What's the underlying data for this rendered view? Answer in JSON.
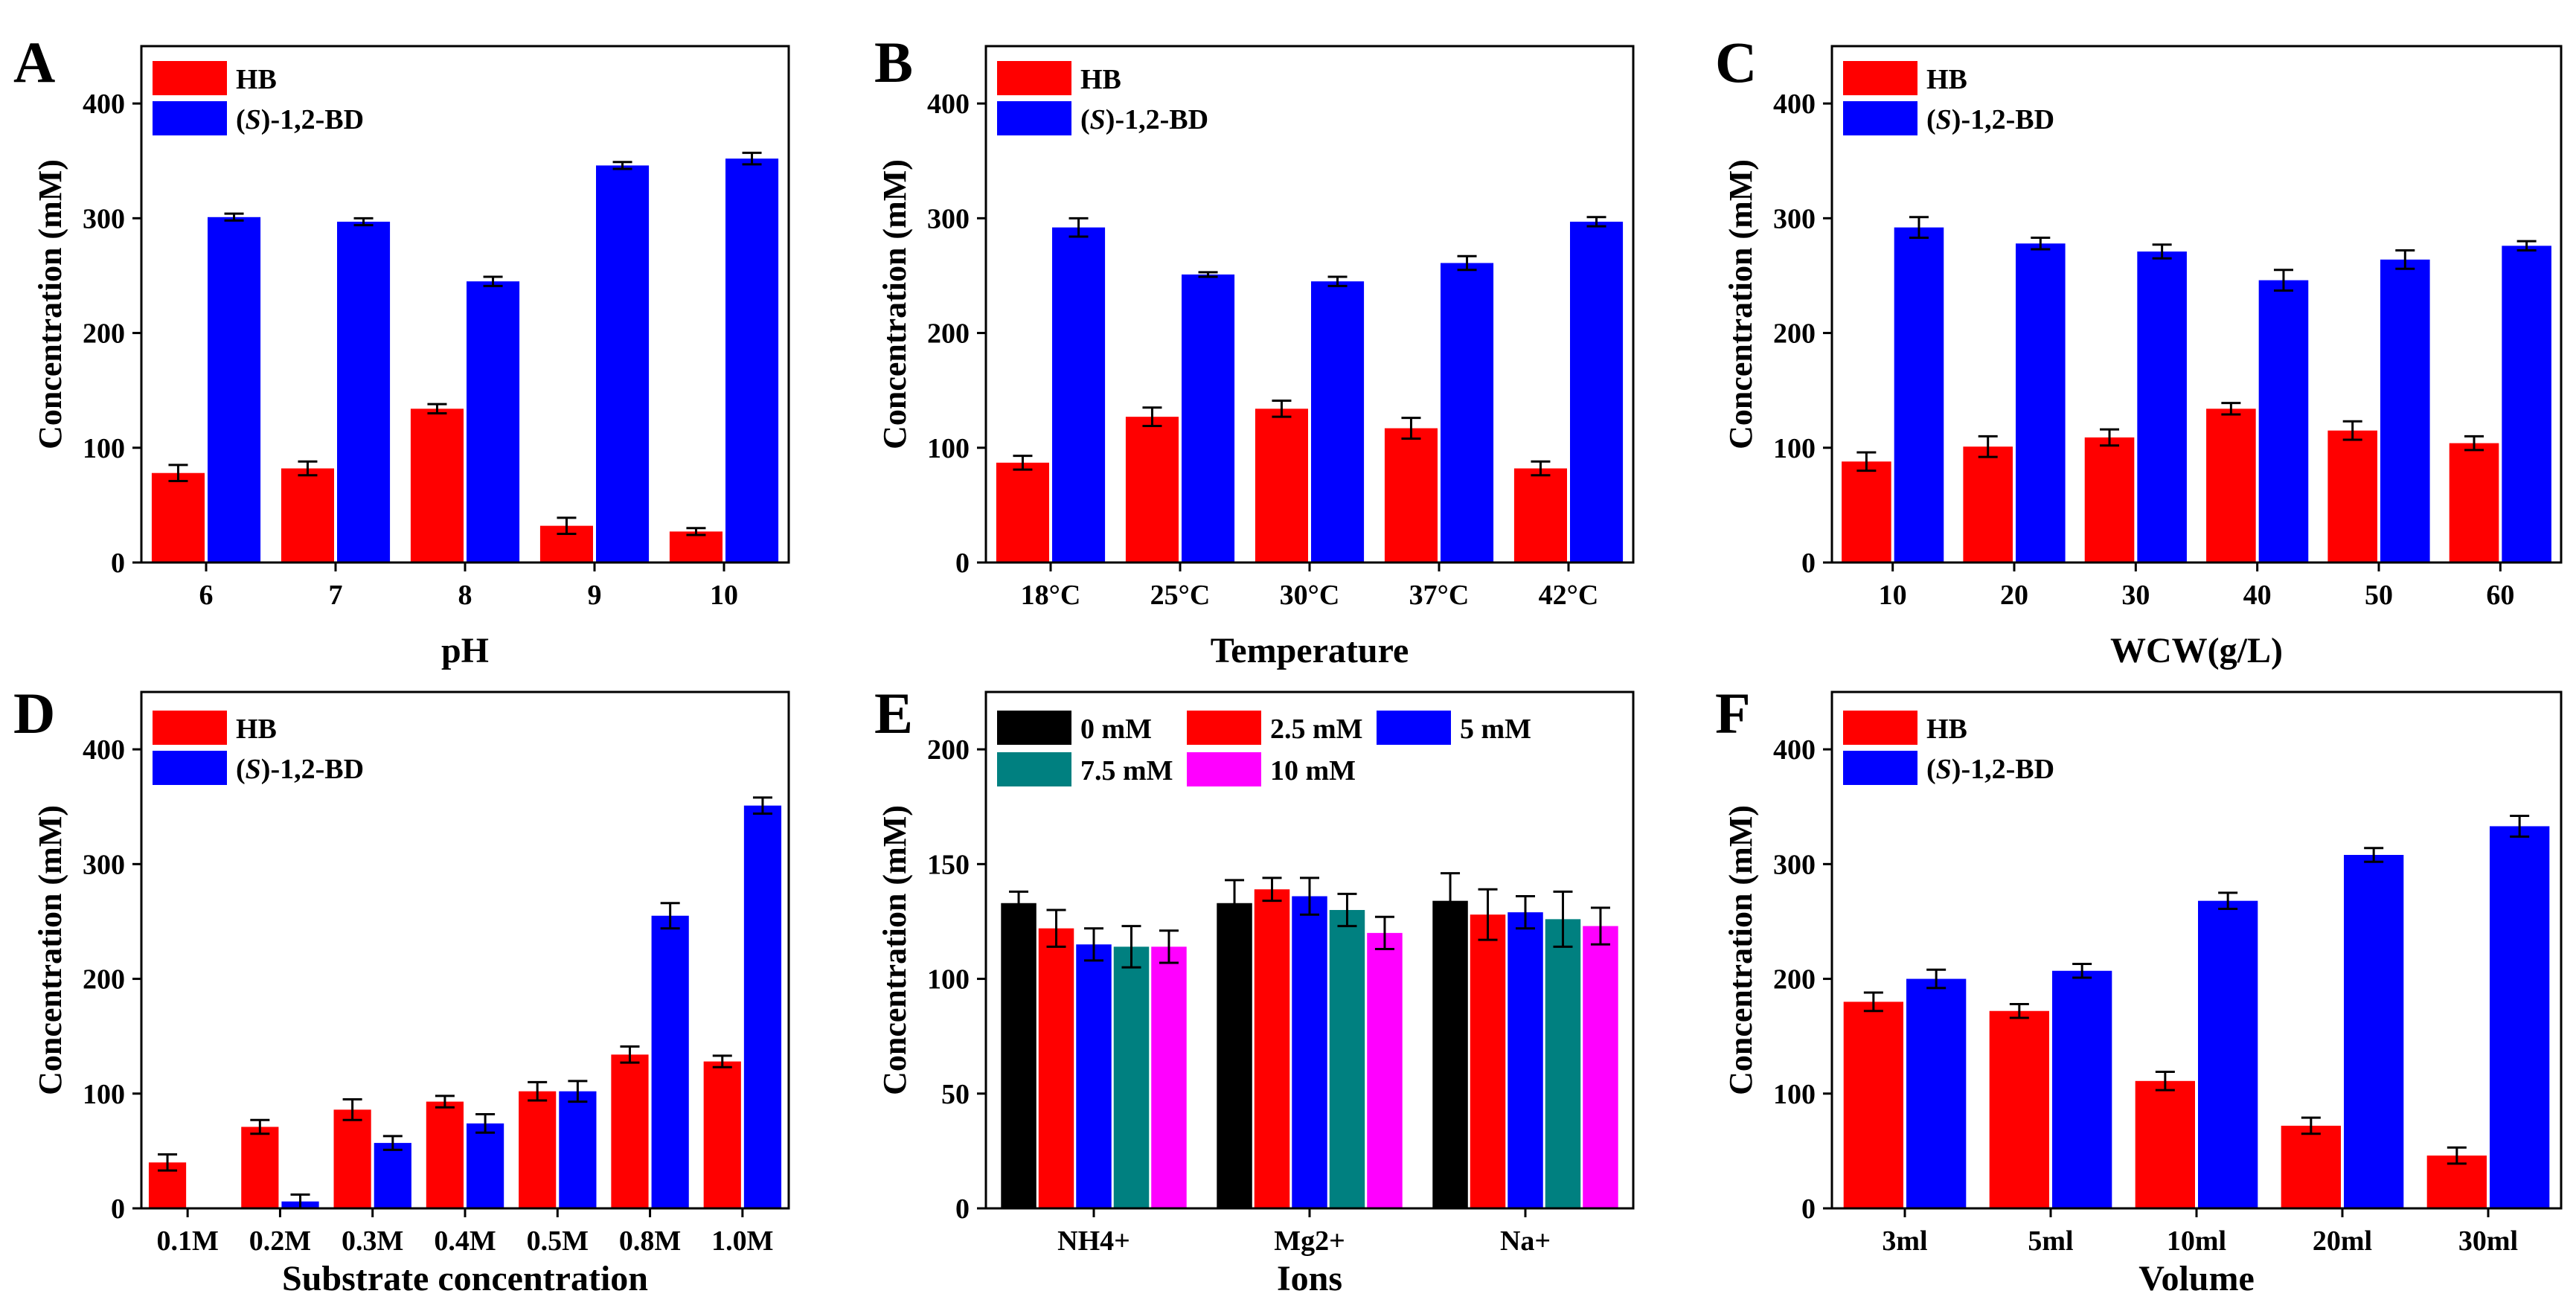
{
  "colors": {
    "hb": "#ff0000",
    "bd": "#0000ff",
    "black": "#000000",
    "teal": "#008080",
    "magenta": "#ff00ff",
    "axis": "#000000"
  },
  "chart_data": [
    {
      "type": "bar",
      "panel_label": "A",
      "title": "",
      "xlabel": "pH",
      "ylabel": "Concentration (mM)",
      "ylim": [
        0,
        450
      ],
      "yticks": [
        0,
        100,
        200,
        300,
        400
      ],
      "categories": [
        "6",
        "7",
        "8",
        "9",
        "10"
      ],
      "legend": {
        "position": "top-left",
        "columns": 1
      },
      "series": [
        {
          "name": "HB",
          "color_key": "hb",
          "values": [
            78,
            82,
            134,
            32,
            27
          ],
          "errors": [
            7,
            6,
            4,
            7,
            3
          ]
        },
        {
          "name": "(S)-1,2-BD",
          "name_prefix": "(",
          "name_italic": "S",
          "name_suffix": ")-1,2-BD",
          "color_key": "bd",
          "values": [
            301,
            297,
            245,
            346,
            352
          ],
          "errors": [
            3,
            3,
            4,
            3,
            5
          ]
        }
      ]
    },
    {
      "type": "bar",
      "panel_label": "B",
      "title": "",
      "xlabel": "Temperature",
      "ylabel": "Concentration (mM)",
      "ylim": [
        0,
        450
      ],
      "yticks": [
        0,
        100,
        200,
        300,
        400
      ],
      "categories": [
        "18°C",
        "25°C",
        "30°C",
        "37°C",
        "42°C"
      ],
      "legend": {
        "position": "top-left",
        "columns": 1
      },
      "series": [
        {
          "name": "HB",
          "color_key": "hb",
          "values": [
            87,
            127,
            134,
            117,
            82
          ],
          "errors": [
            6,
            8,
            7,
            9,
            6
          ]
        },
        {
          "name": "(S)-1,2-BD",
          "name_prefix": "(",
          "name_italic": "S",
          "name_suffix": ")-1,2-BD",
          "color_key": "bd",
          "values": [
            292,
            251,
            245,
            261,
            297
          ],
          "errors": [
            8,
            2,
            4,
            6,
            4
          ]
        }
      ]
    },
    {
      "type": "bar",
      "panel_label": "C",
      "title": "",
      "xlabel": "WCW(g/L)",
      "ylabel": "Concentration (mM)",
      "ylim": [
        0,
        450
      ],
      "yticks": [
        0,
        100,
        200,
        300,
        400
      ],
      "categories": [
        "10",
        "20",
        "30",
        "40",
        "50",
        "60"
      ],
      "legend": {
        "position": "top-left",
        "columns": 1
      },
      "series": [
        {
          "name": "HB",
          "color_key": "hb",
          "values": [
            88,
            101,
            109,
            134,
            115,
            104
          ],
          "errors": [
            8,
            9,
            7,
            5,
            8,
            6
          ]
        },
        {
          "name": "(S)-1,2-BD",
          "name_prefix": "(",
          "name_italic": "S",
          "name_suffix": ")-1,2-BD",
          "color_key": "bd",
          "values": [
            292,
            278,
            271,
            246,
            264,
            276
          ],
          "errors": [
            9,
            5,
            6,
            9,
            8,
            4
          ]
        }
      ]
    },
    {
      "type": "bar",
      "panel_label": "D",
      "title": "",
      "xlabel": "Substrate concentration",
      "ylabel": "Concentration (mM)",
      "ylim": [
        0,
        450
      ],
      "yticks": [
        0,
        100,
        200,
        300,
        400
      ],
      "categories": [
        "0.1M",
        "0.2M",
        "0.3M",
        "0.4M",
        "0.5M",
        "0.8M",
        "1.0M"
      ],
      "legend": {
        "position": "top-left",
        "columns": 1
      },
      "series": [
        {
          "name": "HB",
          "color_key": "hb",
          "values": [
            40,
            71,
            86,
            93,
            102,
            134,
            128
          ],
          "errors": [
            7,
            6,
            9,
            5,
            8,
            7,
            5
          ]
        },
        {
          "name": "(S)-1,2-BD",
          "name_prefix": "(",
          "name_italic": "S",
          "name_suffix": ")-1,2-BD",
          "color_key": "bd",
          "values": [
            0,
            6,
            57,
            74,
            102,
            255,
            351
          ],
          "errors": [
            0,
            6,
            6,
            8,
            9,
            11,
            7
          ]
        }
      ]
    },
    {
      "type": "bar",
      "panel_label": "E",
      "title": "",
      "xlabel": "Ions",
      "ylabel": "Concentration (mM)",
      "ylim": [
        0,
        225
      ],
      "yticks": [
        0,
        50,
        100,
        150,
        200
      ],
      "categories": [
        "NH4+",
        "Mg2+",
        "Na+"
      ],
      "legend": {
        "position": "top-left",
        "columns": 3
      },
      "series": [
        {
          "name": "0 mM",
          "color_key": "black",
          "values": [
            133,
            133,
            134
          ],
          "errors": [
            5,
            10,
            12
          ]
        },
        {
          "name": "2.5 mM",
          "color_key": "hb",
          "values": [
            122,
            139,
            128
          ],
          "errors": [
            8,
            5,
            11
          ]
        },
        {
          "name": "5 mM",
          "color_key": "bd",
          "values": [
            115,
            136,
            129
          ],
          "errors": [
            7,
            8,
            7
          ]
        },
        {
          "name": "7.5 mM",
          "color_key": "teal",
          "values": [
            114,
            130,
            126
          ],
          "errors": [
            9,
            7,
            12
          ]
        },
        {
          "name": "10 mM",
          "color_key": "magenta",
          "values": [
            114,
            120,
            123
          ],
          "errors": [
            7,
            7,
            8
          ]
        }
      ]
    },
    {
      "type": "bar",
      "panel_label": "F",
      "title": "",
      "xlabel": "Volume",
      "ylabel": "Concentration (mM)",
      "ylim": [
        0,
        450
      ],
      "yticks": [
        0,
        100,
        200,
        300,
        400
      ],
      "categories": [
        "3ml",
        "5ml",
        "10ml",
        "20ml",
        "30ml"
      ],
      "legend": {
        "position": "top-left",
        "columns": 1
      },
      "series": [
        {
          "name": "HB",
          "color_key": "hb",
          "values": [
            180,
            172,
            111,
            72,
            46
          ],
          "errors": [
            8,
            6,
            8,
            7,
            7
          ]
        },
        {
          "name": "(S)-1,2-BD",
          "name_prefix": "(",
          "name_italic": "S",
          "name_suffix": ")-1,2-BD",
          "color_key": "bd",
          "values": [
            200,
            207,
            268,
            308,
            333
          ],
          "errors": [
            8,
            6,
            7,
            6,
            9
          ]
        }
      ]
    }
  ]
}
